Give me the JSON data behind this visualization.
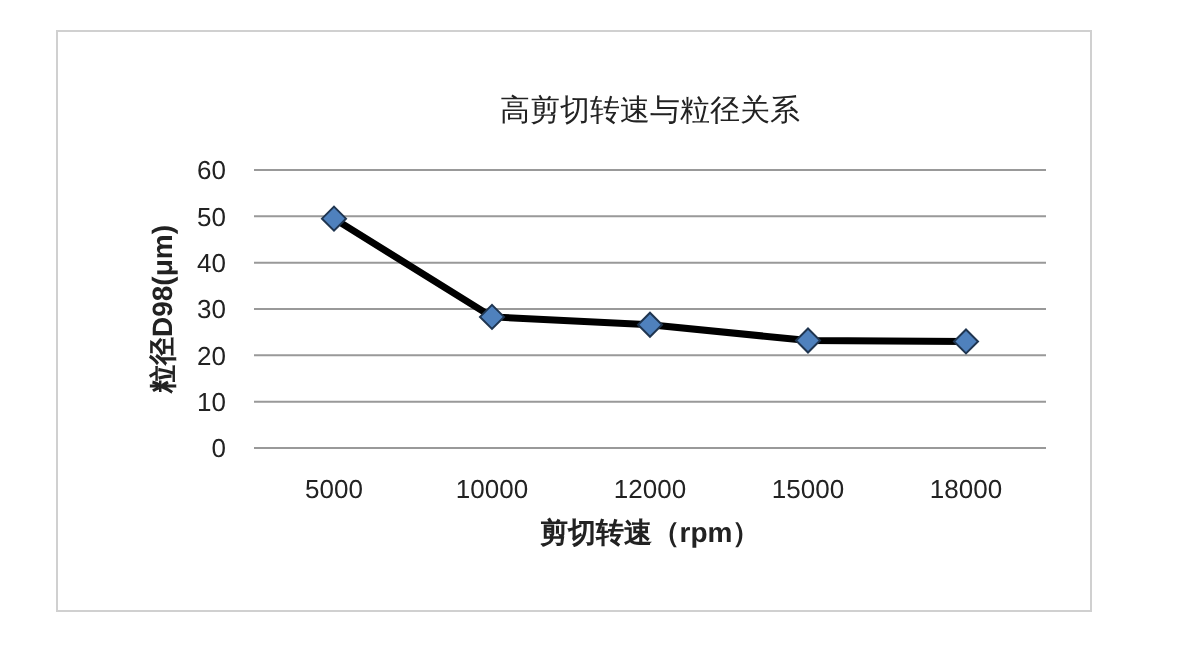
{
  "chart_data": {
    "type": "line",
    "title": "高剪切转速与粒径关系",
    "xlabel": "剪切转速（rpm）",
    "ylabel": "粒径D98(μm)",
    "categories": [
      "5000",
      "10000",
      "12000",
      "15000",
      "18000"
    ],
    "series": [
      {
        "color": "#000000",
        "values": [
          49.5,
          28.3,
          26.6,
          23.2,
          23.0
        ]
      }
    ],
    "ylim": [
      0,
      60
    ],
    "yticks": [
      0,
      10,
      20,
      30,
      40,
      50,
      60
    ],
    "grid": "y",
    "marker": "diamond",
    "legend": false
  }
}
